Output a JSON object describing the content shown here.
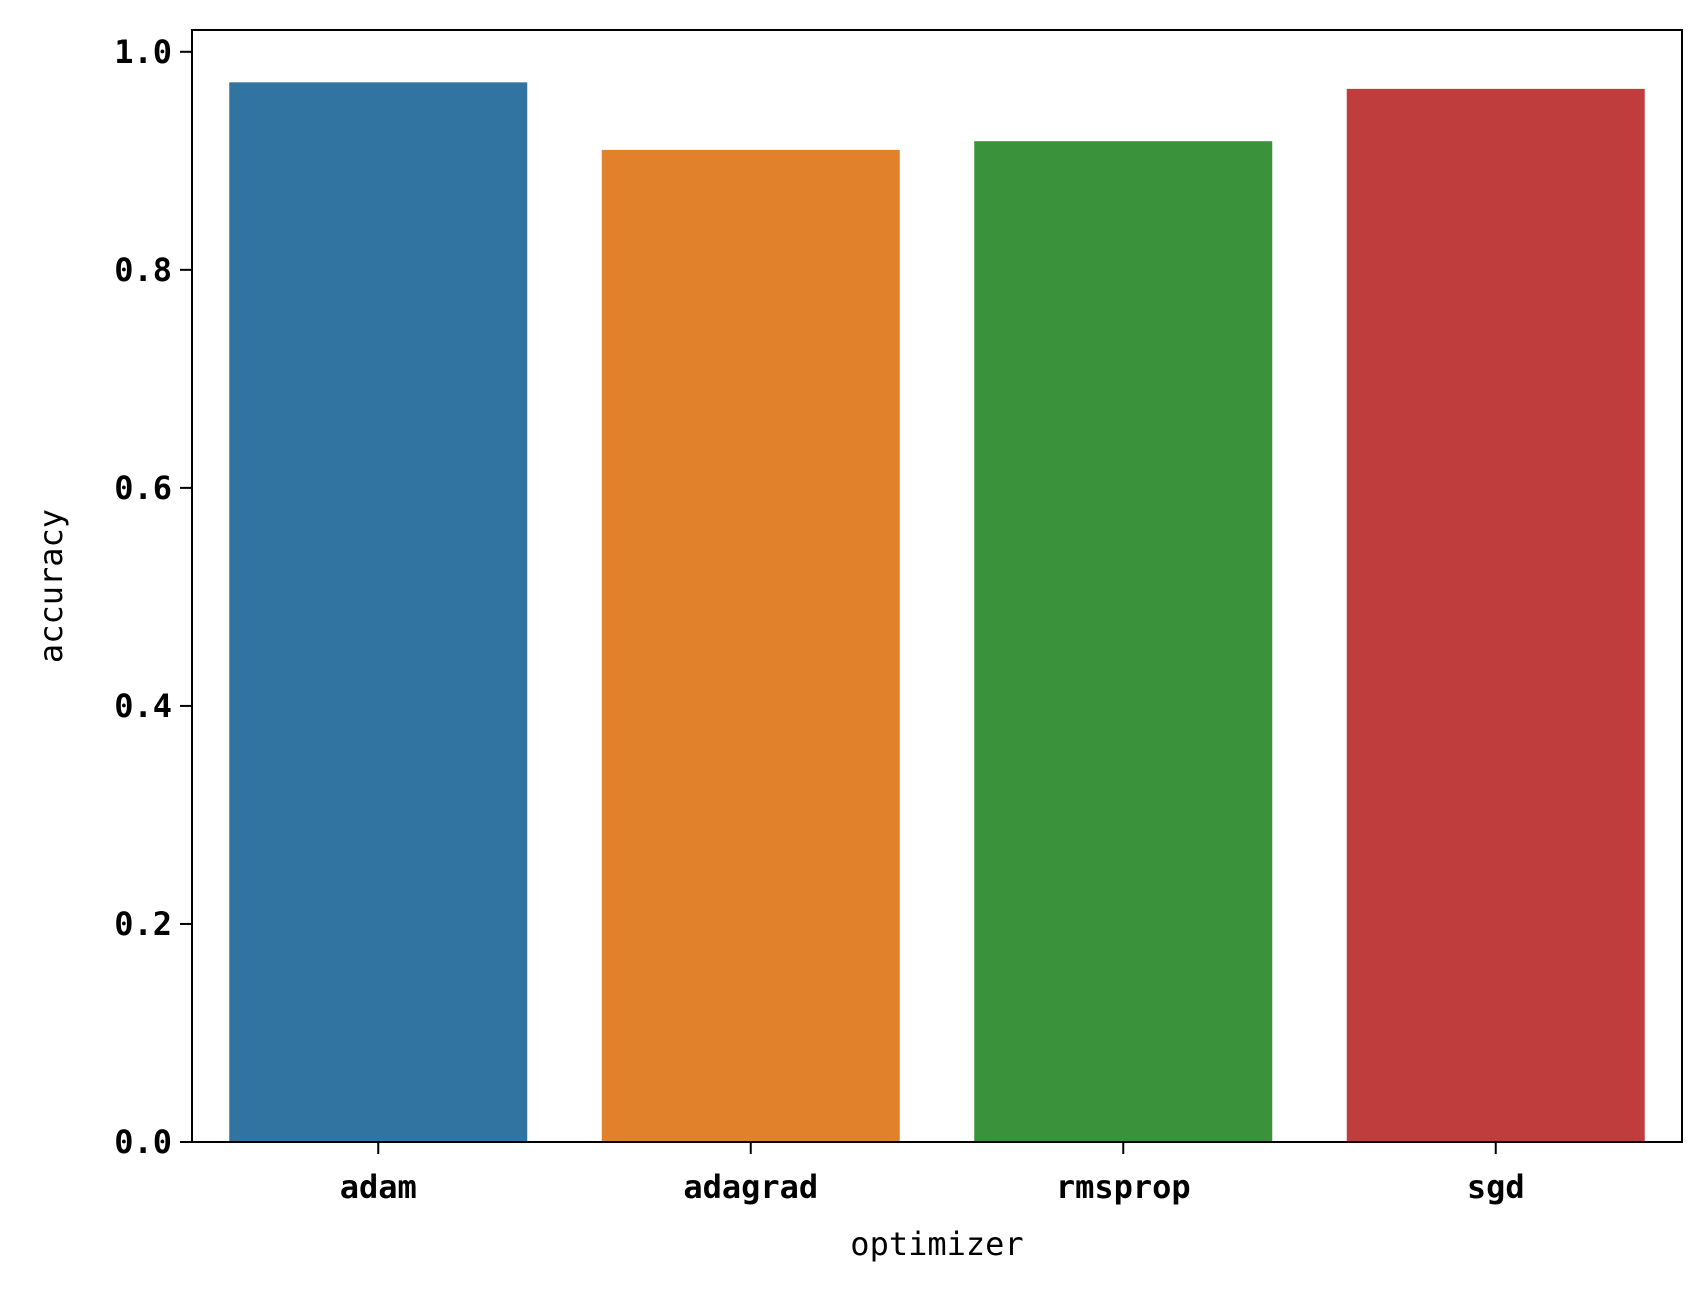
{
  "chart_data": {
    "type": "bar",
    "title": "",
    "xlabel": "optimizer",
    "ylabel": "accuracy",
    "categories": [
      "adam",
      "adagrad",
      "rmsprop",
      "sgd"
    ],
    "values": [
      0.972,
      0.91,
      0.918,
      0.966
    ],
    "colors": [
      "#3274a1",
      "#e1812c",
      "#3a923a",
      "#c03d3e"
    ],
    "ylim": [
      0,
      1.02
    ],
    "yticks": [
      0.0,
      0.2,
      0.4,
      0.6,
      0.8,
      1.0
    ],
    "ytick_labels": [
      "0.0",
      "0.2",
      "0.4",
      "0.6",
      "0.8",
      "1.0"
    ],
    "grid": false,
    "legend": "none"
  }
}
